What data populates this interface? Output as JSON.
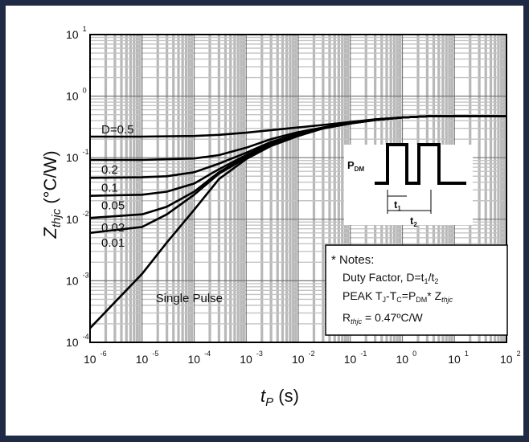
{
  "chart_data": {
    "type": "line",
    "title": "",
    "xlabel": {
      "main": "t",
      "sub": "P",
      "unit": " (s)"
    },
    "ylabel": {
      "main": "Z",
      "sub": "thjc",
      "unit": " (°C/W)"
    },
    "x_scale": "log",
    "y_scale": "log",
    "xlim": [
      1e-06,
      100
    ],
    "ylim": [
      0.0001,
      10
    ],
    "grid": true,
    "x_ticks": [
      {
        "value": 1e-06,
        "base": "10",
        "exp": "-6"
      },
      {
        "value": 1e-05,
        "base": "10",
        "exp": "-5"
      },
      {
        "value": 0.0001,
        "base": "10",
        "exp": "-4"
      },
      {
        "value": 0.001,
        "base": "10",
        "exp": "-3"
      },
      {
        "value": 0.01,
        "base": "10",
        "exp": "-2"
      },
      {
        "value": 0.1,
        "base": "10",
        "exp": "-1"
      },
      {
        "value": 1,
        "base": "10",
        "exp": "0"
      },
      {
        "value": 10,
        "base": "10",
        "exp": "1"
      },
      {
        "value": 100,
        "base": "10",
        "exp": "2"
      }
    ],
    "y_ticks": [
      {
        "value": 10,
        "base": "10",
        "exp": "1"
      },
      {
        "value": 1,
        "base": "10",
        "exp": "0"
      },
      {
        "value": 0.1,
        "base": "10",
        "exp": "-1"
      },
      {
        "value": 0.01,
        "base": "10",
        "exp": "-2"
      },
      {
        "value": 0.001,
        "base": "10",
        "exp": "-3"
      },
      {
        "value": 0.0001,
        "base": "10",
        "exp": "-4"
      }
    ],
    "series": [
      {
        "name": "D=0.5",
        "x": [
          1e-06,
          1e-05,
          0.0001,
          0.0003,
          0.001,
          0.003,
          0.01,
          0.03,
          0.1,
          0.3,
          1,
          3,
          100
        ],
        "y": [
          0.22,
          0.22,
          0.225,
          0.235,
          0.255,
          0.28,
          0.31,
          0.34,
          0.38,
          0.42,
          0.45,
          0.47,
          0.47
        ]
      },
      {
        "name": "0.2",
        "x": [
          1e-06,
          1e-05,
          0.0001,
          0.0003,
          0.001,
          0.003,
          0.01,
          0.03,
          0.1,
          0.3,
          1,
          3,
          100
        ],
        "y": [
          0.092,
          0.092,
          0.097,
          0.11,
          0.145,
          0.2,
          0.26,
          0.31,
          0.37,
          0.42,
          0.45,
          0.47,
          0.47
        ]
      },
      {
        "name": "0.1",
        "x": [
          1e-06,
          1e-05,
          3e-05,
          0.0001,
          0.0003,
          0.001,
          0.003,
          0.01,
          0.03,
          0.1,
          0.3,
          1,
          3,
          100
        ],
        "y": [
          0.047,
          0.048,
          0.05,
          0.058,
          0.08,
          0.12,
          0.18,
          0.245,
          0.3,
          0.36,
          0.41,
          0.45,
          0.47,
          0.47
        ]
      },
      {
        "name": "0.05",
        "x": [
          1e-06,
          1e-05,
          3e-05,
          0.0001,
          0.0003,
          0.001,
          0.003,
          0.01,
          0.03,
          0.1,
          0.3,
          1,
          3,
          100
        ],
        "y": [
          0.024,
          0.025,
          0.028,
          0.038,
          0.065,
          0.11,
          0.17,
          0.24,
          0.3,
          0.36,
          0.41,
          0.45,
          0.47,
          0.47
        ]
      },
      {
        "name": "0.02",
        "x": [
          1e-06,
          1e-05,
          3e-05,
          0.0001,
          0.0003,
          0.001,
          0.003,
          0.01,
          0.03,
          0.1,
          0.3,
          1,
          3,
          100
        ],
        "y": [
          0.0105,
          0.012,
          0.016,
          0.028,
          0.058,
          0.105,
          0.165,
          0.235,
          0.3,
          0.36,
          0.41,
          0.45,
          0.47,
          0.47
        ]
      },
      {
        "name": "0.01",
        "x": [
          1e-06,
          1e-05,
          3e-05,
          0.0001,
          0.0003,
          0.001,
          0.003,
          0.01,
          0.03,
          0.1,
          0.3,
          1,
          3,
          100
        ],
        "y": [
          0.006,
          0.0075,
          0.012,
          0.025,
          0.055,
          0.1,
          0.16,
          0.23,
          0.3,
          0.36,
          0.41,
          0.45,
          0.47,
          0.47
        ]
      },
      {
        "name": "Single Pulse",
        "x": [
          1e-06,
          3e-06,
          1e-05,
          3e-05,
          0.0001,
          0.0003,
          0.001,
          0.003,
          0.01,
          0.03,
          0.1,
          0.3,
          1,
          3,
          100
        ],
        "y": [
          0.00017,
          0.00045,
          0.0013,
          0.0042,
          0.0142,
          0.045,
          0.095,
          0.155,
          0.225,
          0.3,
          0.36,
          0.41,
          0.45,
          0.47,
          0.47
        ]
      }
    ],
    "pulse_diagram": {
      "p_label": {
        "main": "P",
        "sub": "DM"
      },
      "t1_label": {
        "main": "t",
        "sub": "1"
      },
      "t2_label": {
        "main": "t",
        "sub": "2"
      }
    },
    "notes": {
      "heading": "* Notes:",
      "line1": {
        "a": "Duty Factor, D=t",
        "b": "1",
        "c": "/t",
        "d": "2"
      },
      "line2": {
        "a": "PEAK T",
        "b": "J",
        "c": "-T",
        "d": "C",
        "e": "=P",
        "f": "DM",
        "g": "* Z",
        "h": "thjc"
      },
      "line3": {
        "a": "R",
        "b": "thjc",
        "c": " = 0.47ºC/W"
      }
    }
  }
}
